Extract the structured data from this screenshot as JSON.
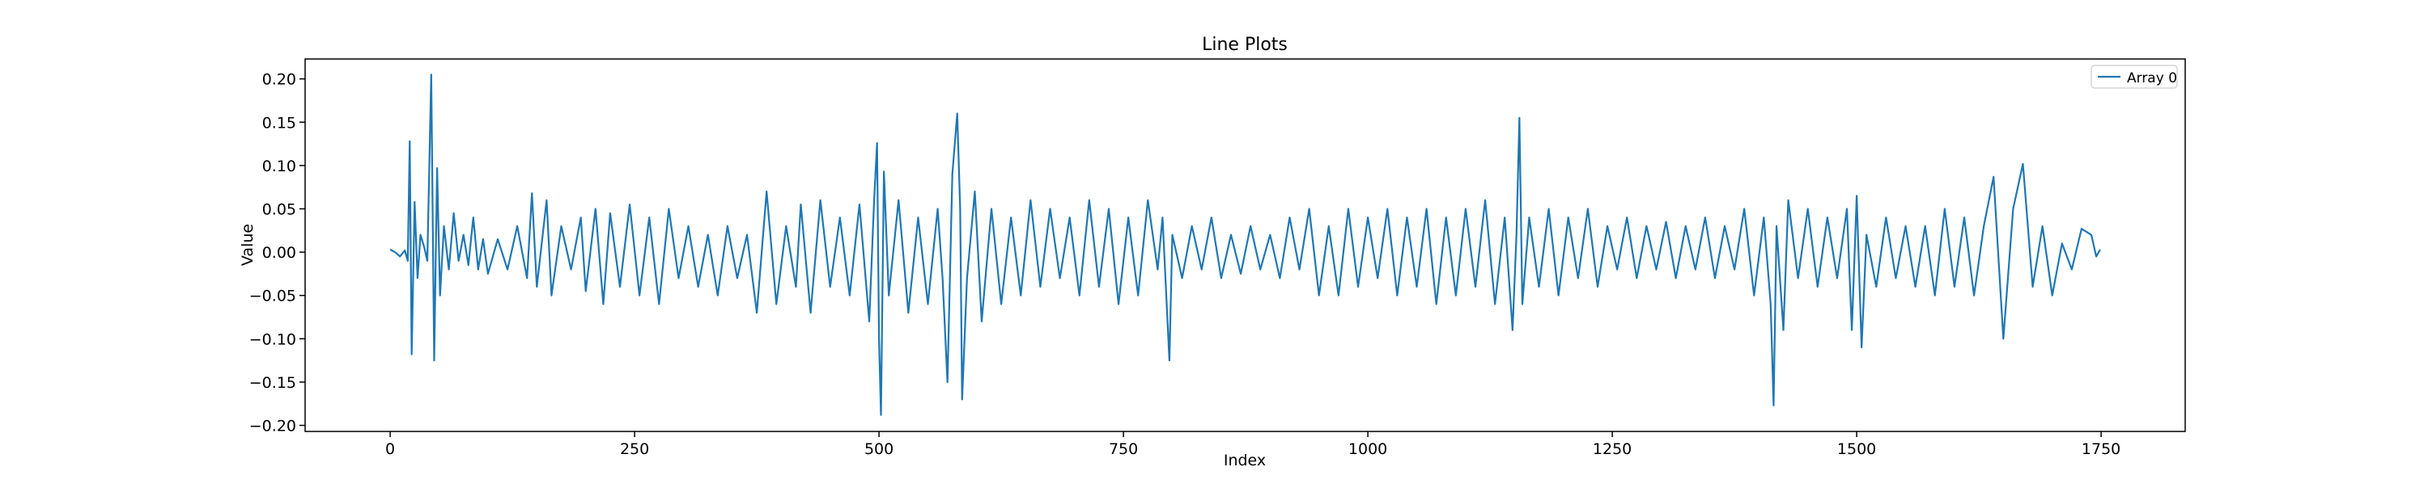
{
  "chart_data": {
    "type": "line",
    "title": "Line Plots",
    "xlabel": "Index",
    "ylabel": "Value",
    "xlim": [
      -87,
      1836
    ],
    "ylim": [
      -0.207,
      0.223
    ],
    "xticks": [
      0,
      250,
      500,
      750,
      1000,
      1250,
      1500,
      1750
    ],
    "yticks": [
      {
        "value": 0.2,
        "label": "0.20"
      },
      {
        "value": 0.15,
        "label": "0.15"
      },
      {
        "value": 0.1,
        "label": "0.10"
      },
      {
        "value": 0.05,
        "label": "0.05"
      },
      {
        "value": 0,
        "label": "0.00"
      },
      {
        "value": -0.05,
        "label": "−0.05"
      },
      {
        "value": -0.1,
        "label": "−0.10"
      },
      {
        "value": -0.15,
        "label": "−0.15"
      },
      {
        "value": -0.2,
        "label": "−0.20"
      }
    ],
    "legend": "upper right",
    "x": [
      0,
      5,
      10,
      15,
      18,
      20,
      22,
      25,
      28,
      31,
      35,
      38,
      42,
      45,
      48,
      51,
      55,
      60,
      65,
      70,
      75,
      80,
      85,
      90,
      95,
      100,
      110,
      120,
      130,
      140,
      145,
      150,
      160,
      165,
      175,
      185,
      195,
      200,
      210,
      218,
      225,
      235,
      245,
      255,
      265,
      275,
      285,
      295,
      305,
      315,
      325,
      335,
      345,
      355,
      365,
      375,
      385,
      395,
      405,
      415,
      420,
      430,
      440,
      450,
      460,
      470,
      480,
      490,
      495,
      498,
      500,
      502,
      505,
      510,
      520,
      530,
      540,
      550,
      560,
      565,
      570,
      575,
      580,
      583,
      585,
      590,
      598,
      605,
      615,
      625,
      635,
      645,
      655,
      665,
      675,
      685,
      695,
      705,
      715,
      725,
      735,
      745,
      755,
      765,
      775,
      785,
      790,
      797,
      800,
      810,
      820,
      830,
      840,
      850,
      860,
      870,
      880,
      890,
      900,
      910,
      920,
      930,
      940,
      950,
      960,
      970,
      980,
      990,
      1000,
      1010,
      1020,
      1030,
      1040,
      1050,
      1060,
      1070,
      1080,
      1090,
      1100,
      1110,
      1120,
      1130,
      1140,
      1148,
      1152,
      1155,
      1158,
      1165,
      1175,
      1185,
      1195,
      1205,
      1215,
      1225,
      1235,
      1245,
      1255,
      1265,
      1275,
      1285,
      1295,
      1305,
      1315,
      1325,
      1335,
      1345,
      1355,
      1365,
      1375,
      1385,
      1395,
      1405,
      1412,
      1415,
      1418,
      1425,
      1430,
      1440,
      1450,
      1460,
      1470,
      1480,
      1490,
      1495,
      1500,
      1505,
      1510,
      1520,
      1530,
      1540,
      1550,
      1560,
      1570,
      1580,
      1590,
      1600,
      1610,
      1620,
      1630,
      1640,
      1650,
      1660,
      1670,
      1680,
      1690,
      1700,
      1710,
      1720,
      1730,
      1740,
      1745,
      1749
    ],
    "series": [
      {
        "name": "Array 0",
        "color": "#1f77b4",
        "values": [
          0.003,
          0.0,
          -0.005,
          0.002,
          -0.01,
          0.128,
          -0.118,
          0.058,
          -0.03,
          0.02,
          0.005,
          -0.01,
          0.205,
          -0.125,
          0.097,
          -0.05,
          0.03,
          -0.02,
          0.045,
          -0.01,
          0.02,
          -0.015,
          0.04,
          -0.02,
          0.015,
          -0.025,
          0.015,
          -0.02,
          0.03,
          -0.03,
          0.068,
          -0.04,
          0.06,
          -0.05,
          0.03,
          -0.02,
          0.04,
          -0.045,
          0.05,
          -0.06,
          0.045,
          -0.04,
          0.055,
          -0.05,
          0.04,
          -0.06,
          0.05,
          -0.03,
          0.03,
          -0.04,
          0.02,
          -0.05,
          0.03,
          -0.03,
          0.02,
          -0.07,
          0.07,
          -0.06,
          0.03,
          -0.04,
          0.055,
          -0.07,
          0.06,
          -0.04,
          0.04,
          -0.05,
          0.055,
          -0.08,
          0.06,
          0.126,
          -0.1,
          -0.188,
          0.093,
          -0.05,
          0.06,
          -0.07,
          0.04,
          -0.06,
          0.05,
          -0.03,
          -0.15,
          0.09,
          0.16,
          0.05,
          -0.17,
          -0.03,
          0.07,
          -0.08,
          0.05,
          -0.06,
          0.04,
          -0.05,
          0.06,
          -0.04,
          0.05,
          -0.03,
          0.04,
          -0.05,
          0.06,
          -0.04,
          0.05,
          -0.06,
          0.04,
          -0.05,
          0.06,
          -0.02,
          0.04,
          -0.125,
          0.02,
          -0.03,
          0.03,
          -0.02,
          0.04,
          -0.03,
          0.02,
          -0.025,
          0.03,
          -0.02,
          0.02,
          -0.03,
          0.04,
          -0.02,
          0.05,
          -0.05,
          0.03,
          -0.05,
          0.05,
          -0.04,
          0.04,
          -0.03,
          0.05,
          -0.05,
          0.04,
          -0.04,
          0.05,
          -0.06,
          0.04,
          -0.05,
          0.05,
          -0.04,
          0.06,
          -0.06,
          0.04,
          -0.09,
          0.02,
          0.155,
          -0.06,
          0.04,
          -0.04,
          0.05,
          -0.05,
          0.04,
          -0.03,
          0.05,
          -0.04,
          0.03,
          -0.02,
          0.04,
          -0.03,
          0.03,
          -0.02,
          0.035,
          -0.03,
          0.03,
          -0.02,
          0.04,
          -0.03,
          0.03,
          -0.02,
          0.05,
          -0.05,
          0.04,
          -0.06,
          -0.177,
          0.03,
          -0.09,
          0.06,
          -0.03,
          0.05,
          -0.04,
          0.04,
          -0.03,
          0.05,
          -0.09,
          0.065,
          -0.11,
          0.02,
          -0.04,
          0.04,
          -0.03,
          0.03,
          -0.04,
          0.03,
          -0.05,
          0.05,
          -0.04,
          0.04,
          -0.05,
          0.03,
          0.087,
          -0.1,
          0.05,
          0.102,
          -0.04,
          0.03,
          -0.05,
          0.01,
          -0.02,
          0.027,
          0.02,
          -0.005,
          0.003
        ]
      }
    ]
  }
}
